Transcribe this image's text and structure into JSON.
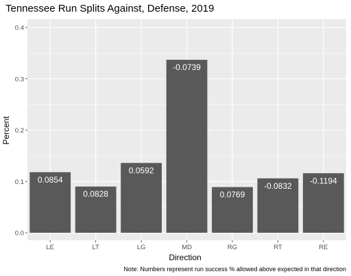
{
  "chart_data": {
    "type": "bar",
    "title": "Tennessee Run Splits Against, Defense, 2019",
    "xlabel": "Direction",
    "ylabel": "Percent",
    "caption": "Note: Numbers represent run success % allowed above expected in that direction",
    "categories": [
      "LE",
      "LT",
      "LG",
      "MD",
      "RG",
      "RT",
      "RE"
    ],
    "values": [
      0.118,
      0.09,
      0.136,
      0.337,
      0.089,
      0.106,
      0.116
    ],
    "data_labels": [
      "0.0854",
      "0.0828",
      "0.0592",
      "-0.0739",
      "0.0769",
      "-0.0832",
      "-0.1194"
    ],
    "ylim": [
      0,
      0.4
    ],
    "yticks": [
      0.0,
      0.1,
      0.2,
      0.3,
      0.4
    ],
    "ytick_labels": [
      "0.0",
      "0.1",
      "0.2",
      "0.3",
      "0.4"
    ],
    "grid": true,
    "legend": "none",
    "colors": {
      "panel_background": "#ebebeb",
      "grid_major": "#ffffff",
      "bar_fill": "#595959",
      "bar_label": "#ffffff",
      "tick_text": "#4d4d4d"
    }
  }
}
